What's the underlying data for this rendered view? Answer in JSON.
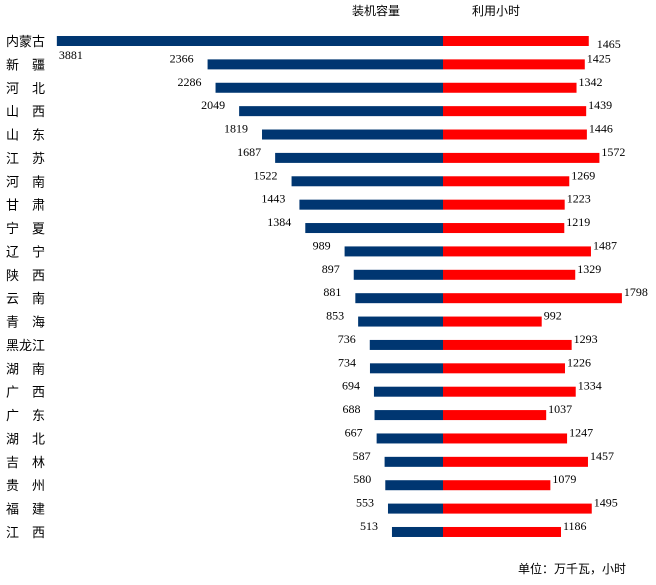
{
  "chart_data": {
    "type": "bar",
    "orientation": "horizontal-butterfly",
    "categories": [
      "内蒙古",
      "新　疆",
      "河　北",
      "山　西",
      "山　东",
      "江　苏",
      "河　南",
      "甘　肃",
      "宁　夏",
      "辽　宁",
      "陕　西",
      "云　南",
      "青　海",
      "黑龙江",
      "湖　南",
      "广　西",
      "广　东",
      "湖　北",
      "吉　林",
      "贵　州",
      "福　建",
      "江　西"
    ],
    "series": [
      {
        "name": "装机容量",
        "color": "#003671",
        "direction": "left",
        "values": [
          3881,
          2366,
          2286,
          2049,
          1819,
          1687,
          1522,
          1443,
          1384,
          989,
          897,
          881,
          853,
          736,
          734,
          694,
          688,
          667,
          587,
          580,
          553,
          513
        ]
      },
      {
        "name": "利用小时",
        "color": "#ff0000",
        "direction": "right",
        "values": [
          1465,
          1425,
          1342,
          1439,
          1446,
          1572,
          1269,
          1223,
          1219,
          1487,
          1329,
          1798,
          992,
          1293,
          1226,
          1334,
          1037,
          1247,
          1457,
          1079,
          1495,
          1186
        ]
      }
    ],
    "unit_note": "单位：万千瓦，小时",
    "grid": false,
    "legend": "top"
  }
}
